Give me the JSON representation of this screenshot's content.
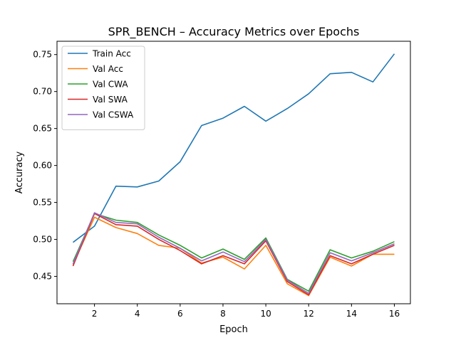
{
  "chart_data": {
    "type": "line",
    "title": "SPR_BENCH – Accuracy Metrics over Epochs",
    "xlabel": "Epoch",
    "ylabel": "Accuracy",
    "xlim": [
      0.25,
      16.75
    ],
    "ylim": [
      0.413,
      0.768
    ],
    "xticks": [
      2,
      4,
      6,
      8,
      10,
      12,
      14,
      16
    ],
    "xtick_labels": [
      "2",
      "4",
      "6",
      "8",
      "10",
      "12",
      "14",
      "16"
    ],
    "yticks": [
      0.45,
      0.5,
      0.55,
      0.6,
      0.65,
      0.7,
      0.75
    ],
    "ytick_labels": [
      "0.45",
      "0.50",
      "0.55",
      "0.60",
      "0.65",
      "0.70",
      "0.75"
    ],
    "grid": false,
    "legend_position": "top-left",
    "x": [
      1,
      2,
      3,
      4,
      5,
      6,
      7,
      8,
      9,
      10,
      11,
      12,
      13,
      14,
      15,
      16
    ],
    "series": [
      {
        "name": "Train Acc",
        "color": "#1f77b4",
        "values": [
          0.496,
          0.518,
          0.572,
          0.571,
          0.579,
          0.605,
          0.654,
          0.664,
          0.68,
          0.66,
          0.677,
          0.697,
          0.724,
          0.726,
          0.713,
          0.751
        ]
      },
      {
        "name": "Val Acc",
        "color": "#ff7f0e",
        "values": [
          0.466,
          0.53,
          0.516,
          0.508,
          0.492,
          0.488,
          0.468,
          0.476,
          0.46,
          0.492,
          0.44,
          0.424,
          0.476,
          0.464,
          0.48,
          0.48
        ]
      },
      {
        "name": "Val CWA",
        "color": "#2ca02c",
        "values": [
          0.47,
          0.535,
          0.526,
          0.523,
          0.506,
          0.492,
          0.475,
          0.487,
          0.473,
          0.502,
          0.446,
          0.43,
          0.486,
          0.475,
          0.484,
          0.497
        ]
      },
      {
        "name": "Val SWA",
        "color": "#d62728",
        "values": [
          0.464,
          0.535,
          0.52,
          0.518,
          0.5,
          0.485,
          0.467,
          0.478,
          0.467,
          0.498,
          0.443,
          0.425,
          0.478,
          0.467,
          0.48,
          0.492
        ]
      },
      {
        "name": "Val CSWA",
        "color": "#9467bd",
        "values": [
          0.467,
          0.536,
          0.523,
          0.521,
          0.503,
          0.488,
          0.471,
          0.483,
          0.47,
          0.5,
          0.445,
          0.427,
          0.482,
          0.471,
          0.482,
          0.494
        ]
      }
    ]
  }
}
